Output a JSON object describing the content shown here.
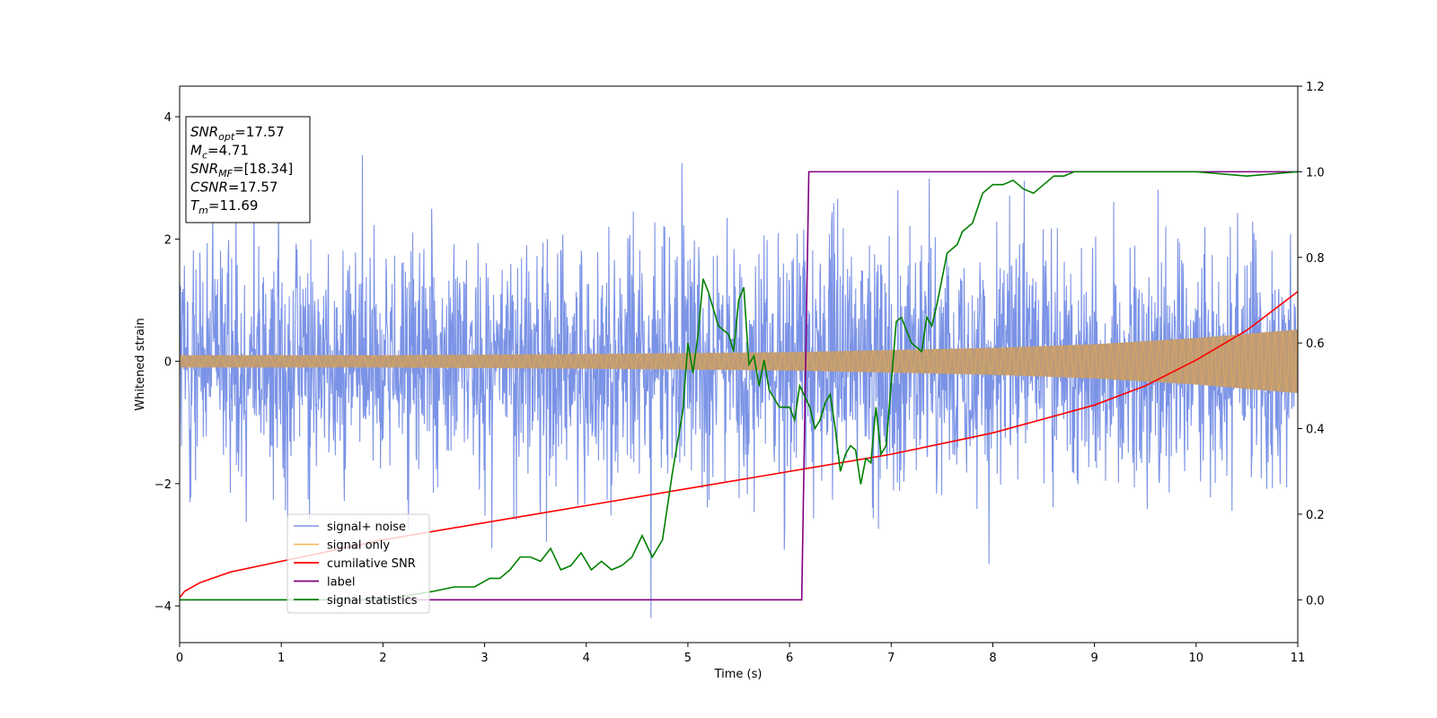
{
  "chart_data": {
    "type": "line",
    "xlabel": "Time (s)",
    "ylabel": "Whitened strain",
    "xlim": [
      0,
      11
    ],
    "ylim_left": [
      -4.6,
      4.5
    ],
    "ylim_right": [
      -0.1,
      1.2
    ],
    "x_ticks": [
      "0",
      "1",
      "2",
      "3",
      "4",
      "5",
      "6",
      "7",
      "8",
      "9",
      "10",
      "11"
    ],
    "y_left_ticks": [
      "−4",
      "−2",
      "0",
      "2",
      "4"
    ],
    "y_right_ticks": [
      "0.0",
      "0.2",
      "0.4",
      "0.6",
      "0.8",
      "1.0",
      "1.2"
    ],
    "legend": {
      "placement": "lower-left",
      "entries": [
        "signal+ noise",
        "signal only",
        "cumilative SNR",
        "label",
        "signal statistics"
      ]
    },
    "info_box": {
      "lines": [
        {
          "main": "SNR",
          "sub": "opt",
          "value": "=17.57"
        },
        {
          "main": "M",
          "sub": "c",
          "value": "=4.71"
        },
        {
          "main": "SNR",
          "sub": "MF",
          "value": "=[18.34]"
        },
        {
          "main": "CSNR",
          "sub": "",
          "value": "=17.57"
        },
        {
          "main": "T",
          "sub": "m",
          "value": "=11.69"
        }
      ]
    },
    "colors": {
      "signal_noise": "#7b93e6",
      "signal_only": "#f5b351",
      "overlap": "#bf9c76",
      "cumulative_snr": "#ff0000",
      "label": "#800080",
      "signal_statistics": "#008000"
    },
    "series": [
      {
        "name": "signal+ noise",
        "axis": "left",
        "noise_std": 1.0,
        "spike_max": 4.1,
        "spike_min": -4.2
      },
      {
        "name": "signal only",
        "axis": "left",
        "amplitude_x": [
          0,
          2,
          4,
          6,
          8,
          9,
          10,
          11
        ],
        "amplitude_y": [
          0.1,
          0.1,
          0.12,
          0.15,
          0.22,
          0.28,
          0.38,
          0.52
        ]
      },
      {
        "name": "cumilative SNR",
        "axis": "right",
        "x": [
          0,
          0.05,
          0.2,
          0.5,
          1,
          2,
          3,
          4,
          5,
          6,
          7,
          8,
          9,
          9.5,
          10,
          10.5,
          11
        ],
        "y": [
          0.005,
          0.02,
          0.04,
          0.065,
          0.09,
          0.14,
          0.18,
          0.22,
          0.26,
          0.3,
          0.34,
          0.39,
          0.455,
          0.5,
          0.56,
          0.63,
          0.72
        ]
      },
      {
        "name": "label",
        "axis": "right",
        "x": [
          0,
          6.12,
          6.19,
          11
        ],
        "y": [
          0,
          0,
          1,
          1
        ]
      },
      {
        "name": "signal statistics",
        "axis": "right",
        "x": [
          0,
          1,
          2,
          2.5,
          2.7,
          2.9,
          3.05,
          3.15,
          3.25,
          3.35,
          3.45,
          3.55,
          3.65,
          3.75,
          3.85,
          3.95,
          4.05,
          4.15,
          4.25,
          4.35,
          4.45,
          4.55,
          4.65,
          4.75,
          4.85,
          4.95,
          5.0,
          5.05,
          5.1,
          5.15,
          5.2,
          5.3,
          5.4,
          5.45,
          5.5,
          5.55,
          5.6,
          5.65,
          5.7,
          5.75,
          5.8,
          5.85,
          5.9,
          6.0,
          6.05,
          6.1,
          6.2,
          6.25,
          6.3,
          6.35,
          6.4,
          6.45,
          6.5,
          6.55,
          6.6,
          6.65,
          6.7,
          6.75,
          6.8,
          6.85,
          6.9,
          6.95,
          7.05,
          7.1,
          7.2,
          7.3,
          7.35,
          7.4,
          7.45,
          7.55,
          7.6,
          7.65,
          7.7,
          7.8,
          7.9,
          8.0,
          8.1,
          8.2,
          8.3,
          8.4,
          8.5,
          8.6,
          8.7,
          8.8,
          8.9,
          9.0,
          9.2,
          9.5,
          10.0,
          10.5,
          11
        ],
        "y": [
          0.0,
          0.0,
          0.0,
          0.02,
          0.03,
          0.03,
          0.05,
          0.05,
          0.07,
          0.1,
          0.1,
          0.09,
          0.12,
          0.07,
          0.08,
          0.11,
          0.07,
          0.09,
          0.07,
          0.08,
          0.1,
          0.15,
          0.1,
          0.14,
          0.3,
          0.44,
          0.6,
          0.53,
          0.62,
          0.75,
          0.72,
          0.64,
          0.62,
          0.58,
          0.7,
          0.73,
          0.55,
          0.57,
          0.5,
          0.56,
          0.49,
          0.47,
          0.45,
          0.45,
          0.42,
          0.5,
          0.45,
          0.4,
          0.42,
          0.46,
          0.48,
          0.4,
          0.3,
          0.34,
          0.36,
          0.35,
          0.27,
          0.33,
          0.32,
          0.45,
          0.34,
          0.36,
          0.65,
          0.66,
          0.6,
          0.58,
          0.66,
          0.64,
          0.69,
          0.81,
          0.82,
          0.83,
          0.86,
          0.88,
          0.95,
          0.97,
          0.97,
          0.98,
          0.96,
          0.95,
          0.97,
          0.99,
          0.99,
          1.0,
          1.0,
          1.0,
          1.0,
          1.0,
          1.0,
          0.99,
          1.0
        ]
      }
    ]
  }
}
